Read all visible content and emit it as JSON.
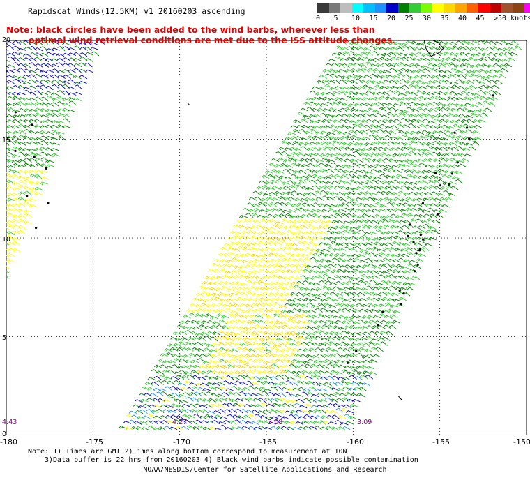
{
  "title": "Rapidscat Winds(12.5KM) v1 20160203 ascending",
  "note": {
    "line1": "Note: black circles have been added to the wind barbs, wherever less than",
    "line2": "optimal wind retrieval conditions are met due to the ISS attitude changes."
  },
  "colorbar": {
    "labels": [
      "0",
      "5",
      "10",
      "15",
      "20",
      "25",
      "30",
      "35",
      "40",
      "45",
      ">50 knots"
    ],
    "colors": [
      "#3a3a3a",
      "#7a7a7a",
      "#bdbdbd",
      "#00ffff",
      "#00bfff",
      "#1e90ff",
      "#0000cd",
      "#008000",
      "#32cd32",
      "#7cfc00",
      "#ffff00",
      "#ffd700",
      "#ffa500",
      "#ff6000",
      "#ff0000",
      "#c00000",
      "#a0522d",
      "#8b4513",
      "#ff00ff",
      "#c000c0",
      "#800080",
      "#4b0082"
    ]
  },
  "map": {
    "lon_ticks": [
      "-180",
      "-175",
      "-170",
      "-165",
      "-160",
      "-155",
      "-150"
    ],
    "lat_ticks": [
      "20",
      "15",
      "10",
      "5",
      "0"
    ],
    "lon_range": [
      -180,
      -150
    ],
    "lat_range": [
      0,
      20
    ],
    "grid": "dotted",
    "pass_times": [
      "4:43",
      "4:27",
      "3:08",
      "3:09"
    ],
    "swaths": [
      {
        "name": "west",
        "lat_span": [
          7.5,
          20
        ],
        "lon_west_edge": -180,
        "lon_east_edge_at_20N": -174.2,
        "lon_east_edge_at_7.5N": -180
      },
      {
        "name": "central",
        "lat_span": [
          0,
          20
        ],
        "lon_east_edge_at_20N": -150,
        "lon_east_edge_at_0N": -160.2,
        "lon_west_edge_at_0N": -173.2,
        "lon_west_edge_at_15N": -163.5
      }
    ]
  },
  "footer": {
    "line1": "Note: 1) Times are GMT 2)Times along bottom correspond to measurement at 10N",
    "line2": "3)Data buffer is 22 hrs from 20160203 4) Black wind barbs indicate possible contamination",
    "credit": "NOAA/NESDIS/Center for Satellite Applications and Research"
  }
}
